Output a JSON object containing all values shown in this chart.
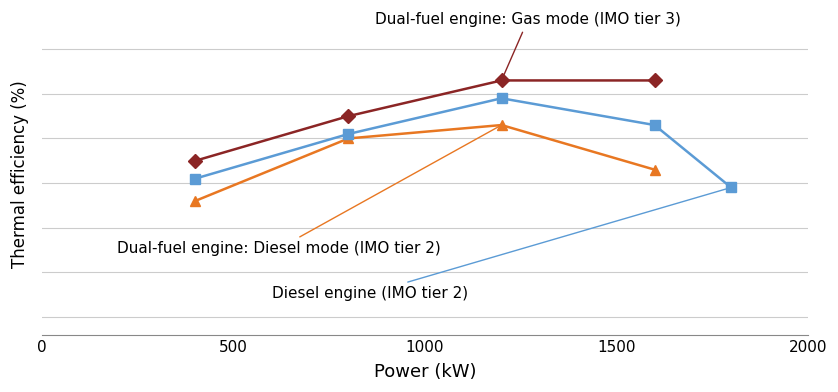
{
  "xlabel": "Power (kW)",
  "ylabel": "Thermal efficiency (%)",
  "background_color": "#ffffff",
  "grid_color": "#cccccc",
  "series": [
    {
      "label": "Dual-fuel engine: Gas mode (IMO tier 3)",
      "color": "#8B2525",
      "marker": "D",
      "x": [
        400,
        800,
        1200,
        1600
      ],
      "y": [
        37.5,
        42.5,
        46.5,
        46.5
      ]
    },
    {
      "label": "Dual-fuel engine: Diesel mode (IMO tier 2)",
      "color": "#E87722",
      "marker": "^",
      "x": [
        400,
        800,
        1200,
        1600
      ],
      "y": [
        33.0,
        40.0,
        41.5,
        36.5
      ]
    },
    {
      "label": "Diesel engine (IMO tier 2)",
      "color": "#5B9BD5",
      "marker": "s",
      "x": [
        400,
        800,
        1200,
        1600,
        1800
      ],
      "y": [
        35.5,
        40.5,
        44.5,
        41.5,
        34.5
      ]
    }
  ],
  "xlim": [
    0,
    2000
  ],
  "ylim": [
    18,
    54
  ],
  "xticks": [
    0,
    500,
    1000,
    1500,
    2000
  ],
  "figsize": [
    8.38,
    3.92
  ],
  "dpi": 100,
  "annotation_fontsize": 11
}
